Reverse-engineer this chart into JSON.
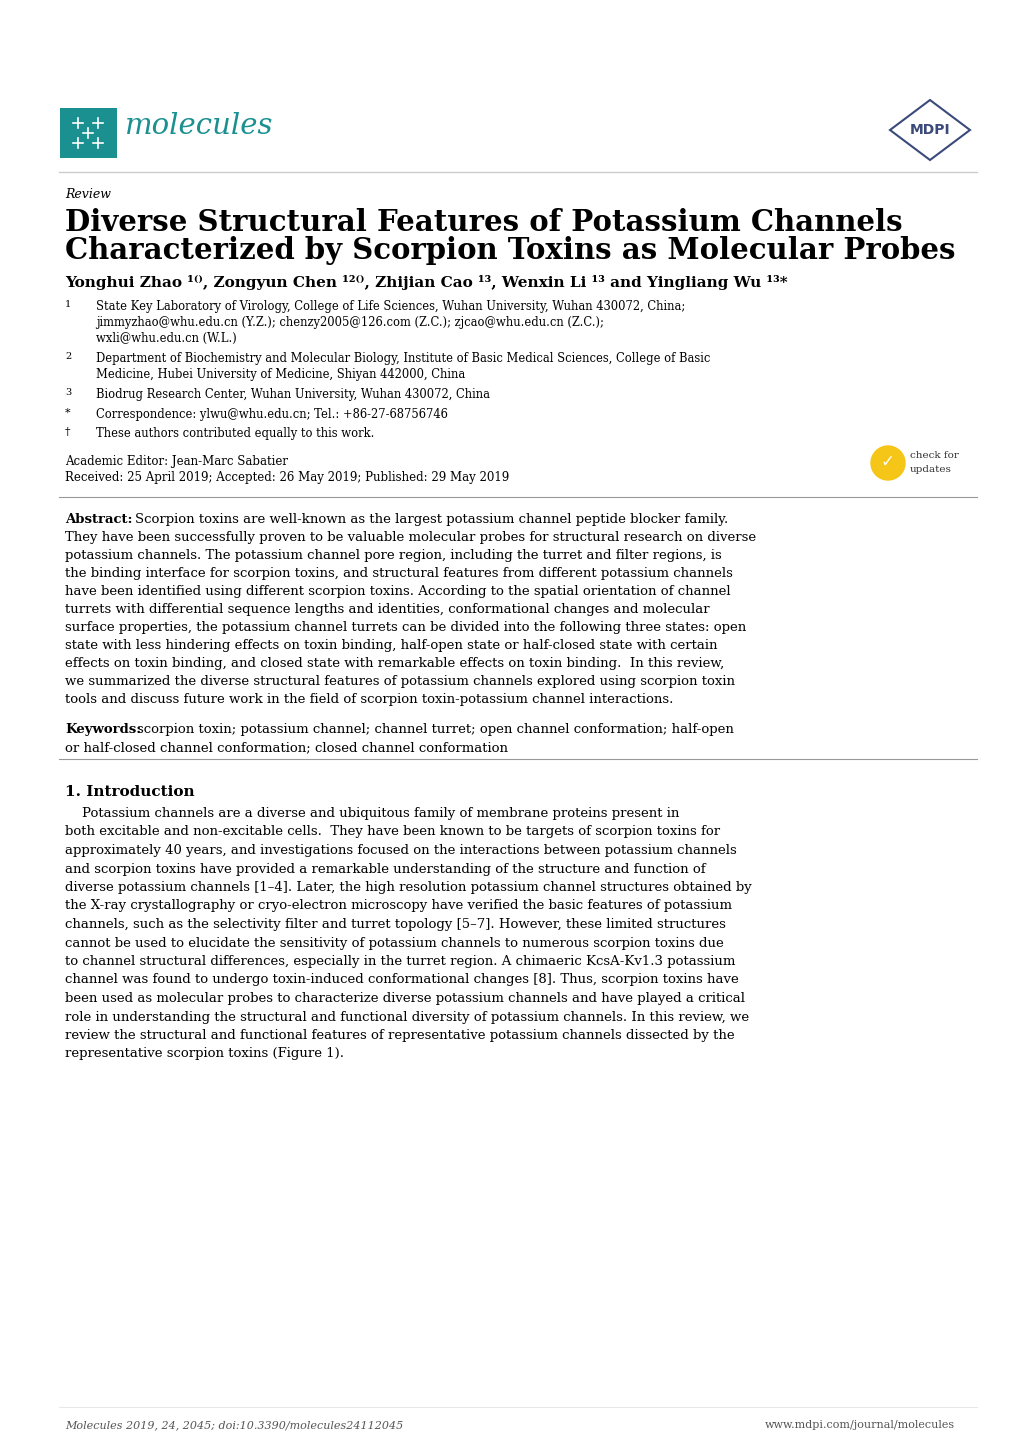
{
  "bg_color": "#ffffff",
  "teal_color": "#1a9090",
  "mdpi_color": "#3a4a7a",
  "text_color": "#000000",
  "gray_color": "#555555",
  "journal_name": "molecules",
  "article_type": "Review",
  "title_line1": "Diverse Structural Features of Potassium Channels",
  "title_line2": "Characterized by Scorpion Toxins as Molecular Probes",
  "editor": "Academic Editor: Jean-Marc Sabatier",
  "dates": "Received: 25 April 2019; Accepted: 26 May 2019; Published: 29 May 2019",
  "abstract_bold": "Abstract:",
  "abstract_lines": [
    "Scorpion toxins are well-known as the largest potassium channel peptide blocker family.",
    "They have been successfully proven to be valuable molecular probes for structural research on diverse",
    "potassium channels. The potassium channel pore region, including the turret and filter regions, is",
    "the binding interface for scorpion toxins, and structural features from different potassium channels",
    "have been identified using different scorpion toxins. According to the spatial orientation of channel",
    "turrets with differential sequence lengths and identities, conformational changes and molecular",
    "surface properties, the potassium channel turrets can be divided into the following three states: open",
    "state with less hindering effects on toxin binding, half-open state or half-closed state with certain",
    "effects on toxin binding, and closed state with remarkable effects on toxin binding.  In this review,",
    "we summarized the diverse structural features of potassium channels explored using scorpion toxin",
    "tools and discuss future work in the field of scorpion toxin-potassium channel interactions."
  ],
  "keywords_bold": "Keywords:",
  "keywords_lines": [
    "scorpion toxin; potassium channel; channel turret; open channel conformation; half-open",
    "or half-closed channel conformation; closed channel conformation"
  ],
  "intro_heading": "1. Introduction",
  "intro_lines": [
    "    Potassium channels are a diverse and ubiquitous family of membrane proteins present in",
    "both excitable and non-excitable cells.  They have been known to be targets of scorpion toxins for",
    "approximately 40 years, and investigations focused on the interactions between potassium channels",
    "and scorpion toxins have provided a remarkable understanding of the structure and function of",
    "diverse potassium channels [1–4]. Later, the high resolution potassium channel structures obtained by",
    "the X-ray crystallography or cryo-electron microscopy have verified the basic features of potassium",
    "channels, such as the selectivity filter and turret topology [5–7]. However, these limited structures",
    "cannot be used to elucidate the sensitivity of potassium channels to numerous scorpion toxins due",
    "to channel structural differences, especially in the turret region. A chimaeric KcsA-Kv1.3 potassium",
    "channel was found to undergo toxin-induced conformational changes [8]. Thus, scorpion toxins have",
    "been used as molecular probes to characterize diverse potassium channels and have played a critical",
    "role in understanding the structural and functional diversity of potassium channels. In this review, we",
    "review the structural and functional features of representative potassium channels dissected by the",
    "representative scorpion toxins (Figure 1)."
  ],
  "footer_left": "Molecules 2019, 24, 2045; doi:10.3390/molecules24112045",
  "footer_right": "www.mdpi.com/journal/molecules"
}
